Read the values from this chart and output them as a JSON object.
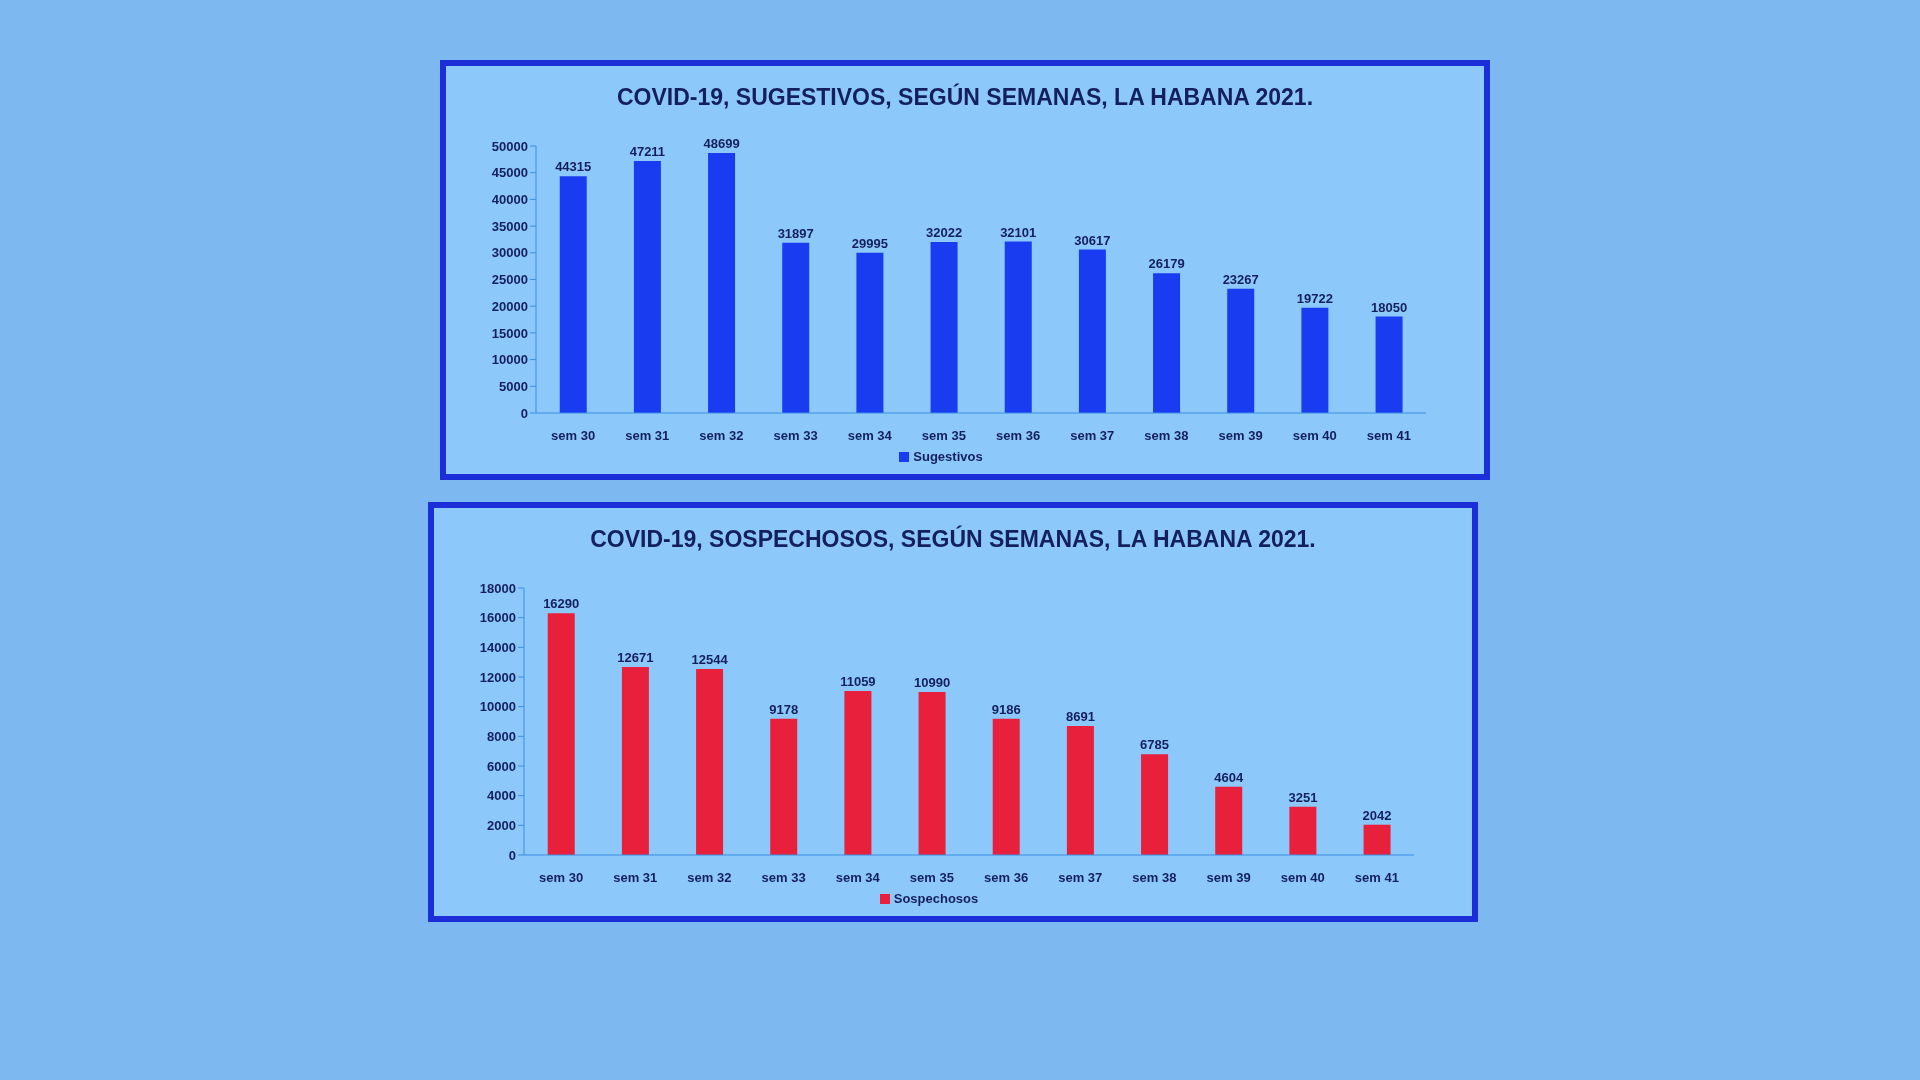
{
  "chart_data": [
    {
      "type": "bar",
      "title": "COVID-19, SUGESTIVOS, SEGÚN SEMANAS, LA HABANA 2021.",
      "categories": [
        "sem 30",
        "sem 31",
        "sem 32",
        "sem 33",
        "sem 34",
        "sem 35",
        "sem 36",
        "sem 37",
        "sem 38",
        "sem 39",
        "sem 40",
        "sem 41"
      ],
      "series": [
        {
          "name": "Sugestivos",
          "color": "#1a3cf0",
          "values": [
            44315,
            47211,
            48699,
            31897,
            29995,
            32022,
            32101,
            30617,
            26179,
            23267,
            19722,
            18050
          ]
        }
      ],
      "ylim": [
        0,
        50000
      ],
      "yticks": [
        0,
        5000,
        10000,
        15000,
        20000,
        25000,
        30000,
        35000,
        40000,
        45000,
        50000
      ],
      "data_labels": true,
      "legend": "bottom"
    },
    {
      "type": "bar",
      "title": "COVID-19, SOSPECHOSOS, SEGÚN SEMANAS, LA HABANA 2021.",
      "categories": [
        "sem 30",
        "sem 31",
        "sem 32",
        "sem 33",
        "sem 34",
        "sem 35",
        "sem 36",
        "sem 37",
        "sem 38",
        "sem 39",
        "sem 40",
        "sem 41"
      ],
      "series": [
        {
          "name": "Sospechosos",
          "color": "#e8203c",
          "values": [
            16290,
            12671,
            12544,
            9178,
            11059,
            10990,
            9186,
            8691,
            6785,
            4604,
            3251,
            2042
          ]
        }
      ],
      "ylim": [
        0,
        18000
      ],
      "yticks": [
        0,
        2000,
        4000,
        6000,
        8000,
        10000,
        12000,
        14000,
        16000,
        18000
      ],
      "data_labels": true,
      "legend": "bottom"
    }
  ]
}
